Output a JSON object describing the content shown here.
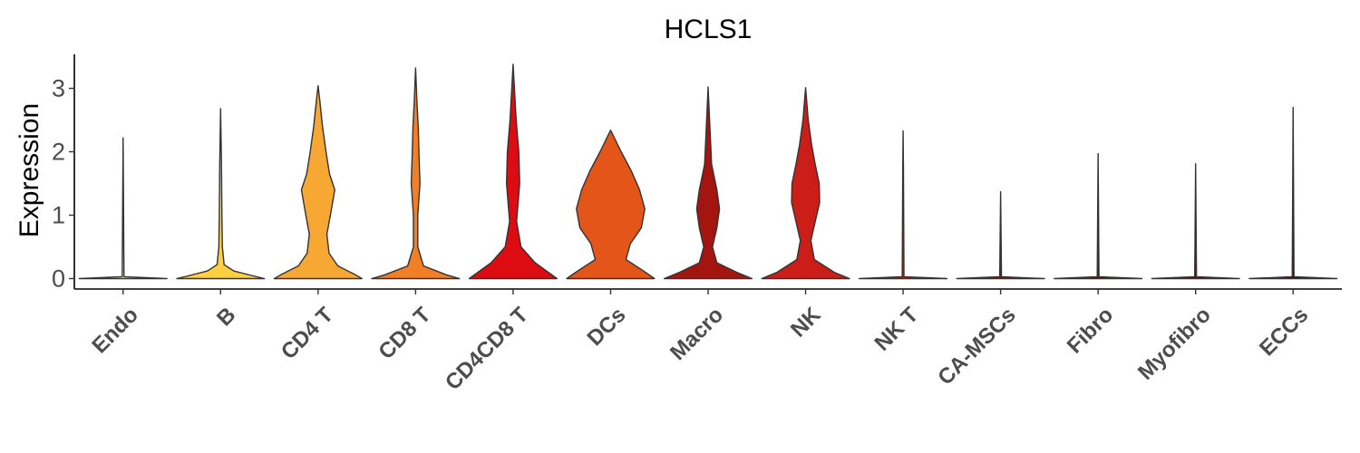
{
  "chart_data": {
    "type": "violin",
    "title": "HCLS1",
    "xlabel": "",
    "ylabel": "Expression",
    "ylim": [
      -0.15,
      3.55
    ],
    "yticks": [
      0,
      1,
      2,
      3
    ],
    "grid": false,
    "legend": "none",
    "categories": [
      "Endo",
      "B",
      "CD4 T",
      "CD8 T",
      "CD4CD8 T",
      "DCs",
      "Macro",
      "NK",
      "NK T",
      "CA-MSCs",
      "Fibro",
      "Myofibro",
      "ECCs"
    ],
    "colors": [
      "#FFFFCC",
      "#FED040",
      "#F6A833",
      "#F07F25",
      "#DD0B12",
      "#E35519",
      "#A5150F",
      "#CB1E18",
      "#B5240F",
      "#7A1A10",
      "#5E1508",
      "#531107",
      "#3B0E06"
    ],
    "violins": [
      {
        "category": "Endo",
        "max": 2.22,
        "profile": [
          [
            0,
            1.0
          ],
          [
            0.03,
            0.02
          ],
          [
            2.22,
            0.0
          ]
        ]
      },
      {
        "category": "B",
        "max": 2.68,
        "profile": [
          [
            0,
            1.0
          ],
          [
            0.05,
            0.7
          ],
          [
            0.12,
            0.3
          ],
          [
            0.22,
            0.08
          ],
          [
            0.5,
            0.04
          ],
          [
            1.0,
            0.03
          ],
          [
            1.8,
            0.02
          ],
          [
            2.68,
            0.0
          ]
        ]
      },
      {
        "category": "CD4 T",
        "max": 3.04,
        "profile": [
          [
            0,
            1.0
          ],
          [
            0.06,
            0.85
          ],
          [
            0.2,
            0.45
          ],
          [
            0.4,
            0.25
          ],
          [
            0.7,
            0.2
          ],
          [
            1.0,
            0.28
          ],
          [
            1.4,
            0.38
          ],
          [
            1.65,
            0.26
          ],
          [
            2.0,
            0.18
          ],
          [
            2.4,
            0.1
          ],
          [
            2.8,
            0.04
          ],
          [
            3.04,
            0.0
          ]
        ]
      },
      {
        "category": "CD8 T",
        "max": 3.32,
        "profile": [
          [
            0,
            1.0
          ],
          [
            0.06,
            0.7
          ],
          [
            0.2,
            0.18
          ],
          [
            0.5,
            0.05
          ],
          [
            1.0,
            0.05
          ],
          [
            1.5,
            0.1
          ],
          [
            1.9,
            0.08
          ],
          [
            2.4,
            0.06
          ],
          [
            2.8,
            0.03
          ],
          [
            3.32,
            0.0
          ]
        ]
      },
      {
        "category": "CD4CD8 T",
        "max": 3.38,
        "profile": [
          [
            0,
            1.0
          ],
          [
            0.1,
            0.8
          ],
          [
            0.25,
            0.5
          ],
          [
            0.5,
            0.18
          ],
          [
            0.9,
            0.08
          ],
          [
            1.5,
            0.15
          ],
          [
            2.0,
            0.13
          ],
          [
            2.5,
            0.07
          ],
          [
            3.0,
            0.03
          ],
          [
            3.38,
            0.0
          ]
        ]
      },
      {
        "category": "DCs",
        "max": 2.34,
        "profile": [
          [
            0,
            1.0
          ],
          [
            0.12,
            0.75
          ],
          [
            0.3,
            0.35
          ],
          [
            0.55,
            0.45
          ],
          [
            0.8,
            0.7
          ],
          [
            1.1,
            0.78
          ],
          [
            1.4,
            0.66
          ],
          [
            1.7,
            0.47
          ],
          [
            2.0,
            0.24
          ],
          [
            2.2,
            0.1
          ],
          [
            2.34,
            0.0
          ]
        ]
      },
      {
        "category": "Macro",
        "max": 3.02,
        "profile": [
          [
            0,
            1.0
          ],
          [
            0.1,
            0.65
          ],
          [
            0.25,
            0.2
          ],
          [
            0.5,
            0.1
          ],
          [
            0.8,
            0.2
          ],
          [
            1.1,
            0.26
          ],
          [
            1.4,
            0.2
          ],
          [
            1.8,
            0.08
          ],
          [
            2.4,
            0.04
          ],
          [
            3.02,
            0.0
          ]
        ]
      },
      {
        "category": "NK",
        "max": 3.01,
        "profile": [
          [
            0,
            1.0
          ],
          [
            0.1,
            0.65
          ],
          [
            0.3,
            0.2
          ],
          [
            0.6,
            0.12
          ],
          [
            0.9,
            0.22
          ],
          [
            1.2,
            0.32
          ],
          [
            1.5,
            0.31
          ],
          [
            1.8,
            0.22
          ],
          [
            2.1,
            0.14
          ],
          [
            2.5,
            0.06
          ],
          [
            3.01,
            0.0
          ]
        ]
      },
      {
        "category": "NK T",
        "max": 2.33,
        "profile": [
          [
            0,
            1.0
          ],
          [
            0.03,
            0.02
          ],
          [
            1.7,
            0.008
          ],
          [
            2.33,
            0.0
          ]
        ]
      },
      {
        "category": "CA-MSCs",
        "max": 1.37,
        "profile": [
          [
            0,
            1.0
          ],
          [
            0.03,
            0.02
          ],
          [
            1.37,
            0.0
          ]
        ]
      },
      {
        "category": "Fibro",
        "max": 1.97,
        "profile": [
          [
            0,
            1.0
          ],
          [
            0.03,
            0.02
          ],
          [
            1.97,
            0.0
          ]
        ]
      },
      {
        "category": "Myofibro",
        "max": 1.81,
        "profile": [
          [
            0,
            1.0
          ],
          [
            0.03,
            0.02
          ],
          [
            1.81,
            0.0
          ]
        ]
      },
      {
        "category": "ECCs",
        "max": 2.7,
        "profile": [
          [
            0,
            1.0
          ],
          [
            0.03,
            0.02
          ],
          [
            2.7,
            0.0
          ]
        ]
      }
    ]
  }
}
